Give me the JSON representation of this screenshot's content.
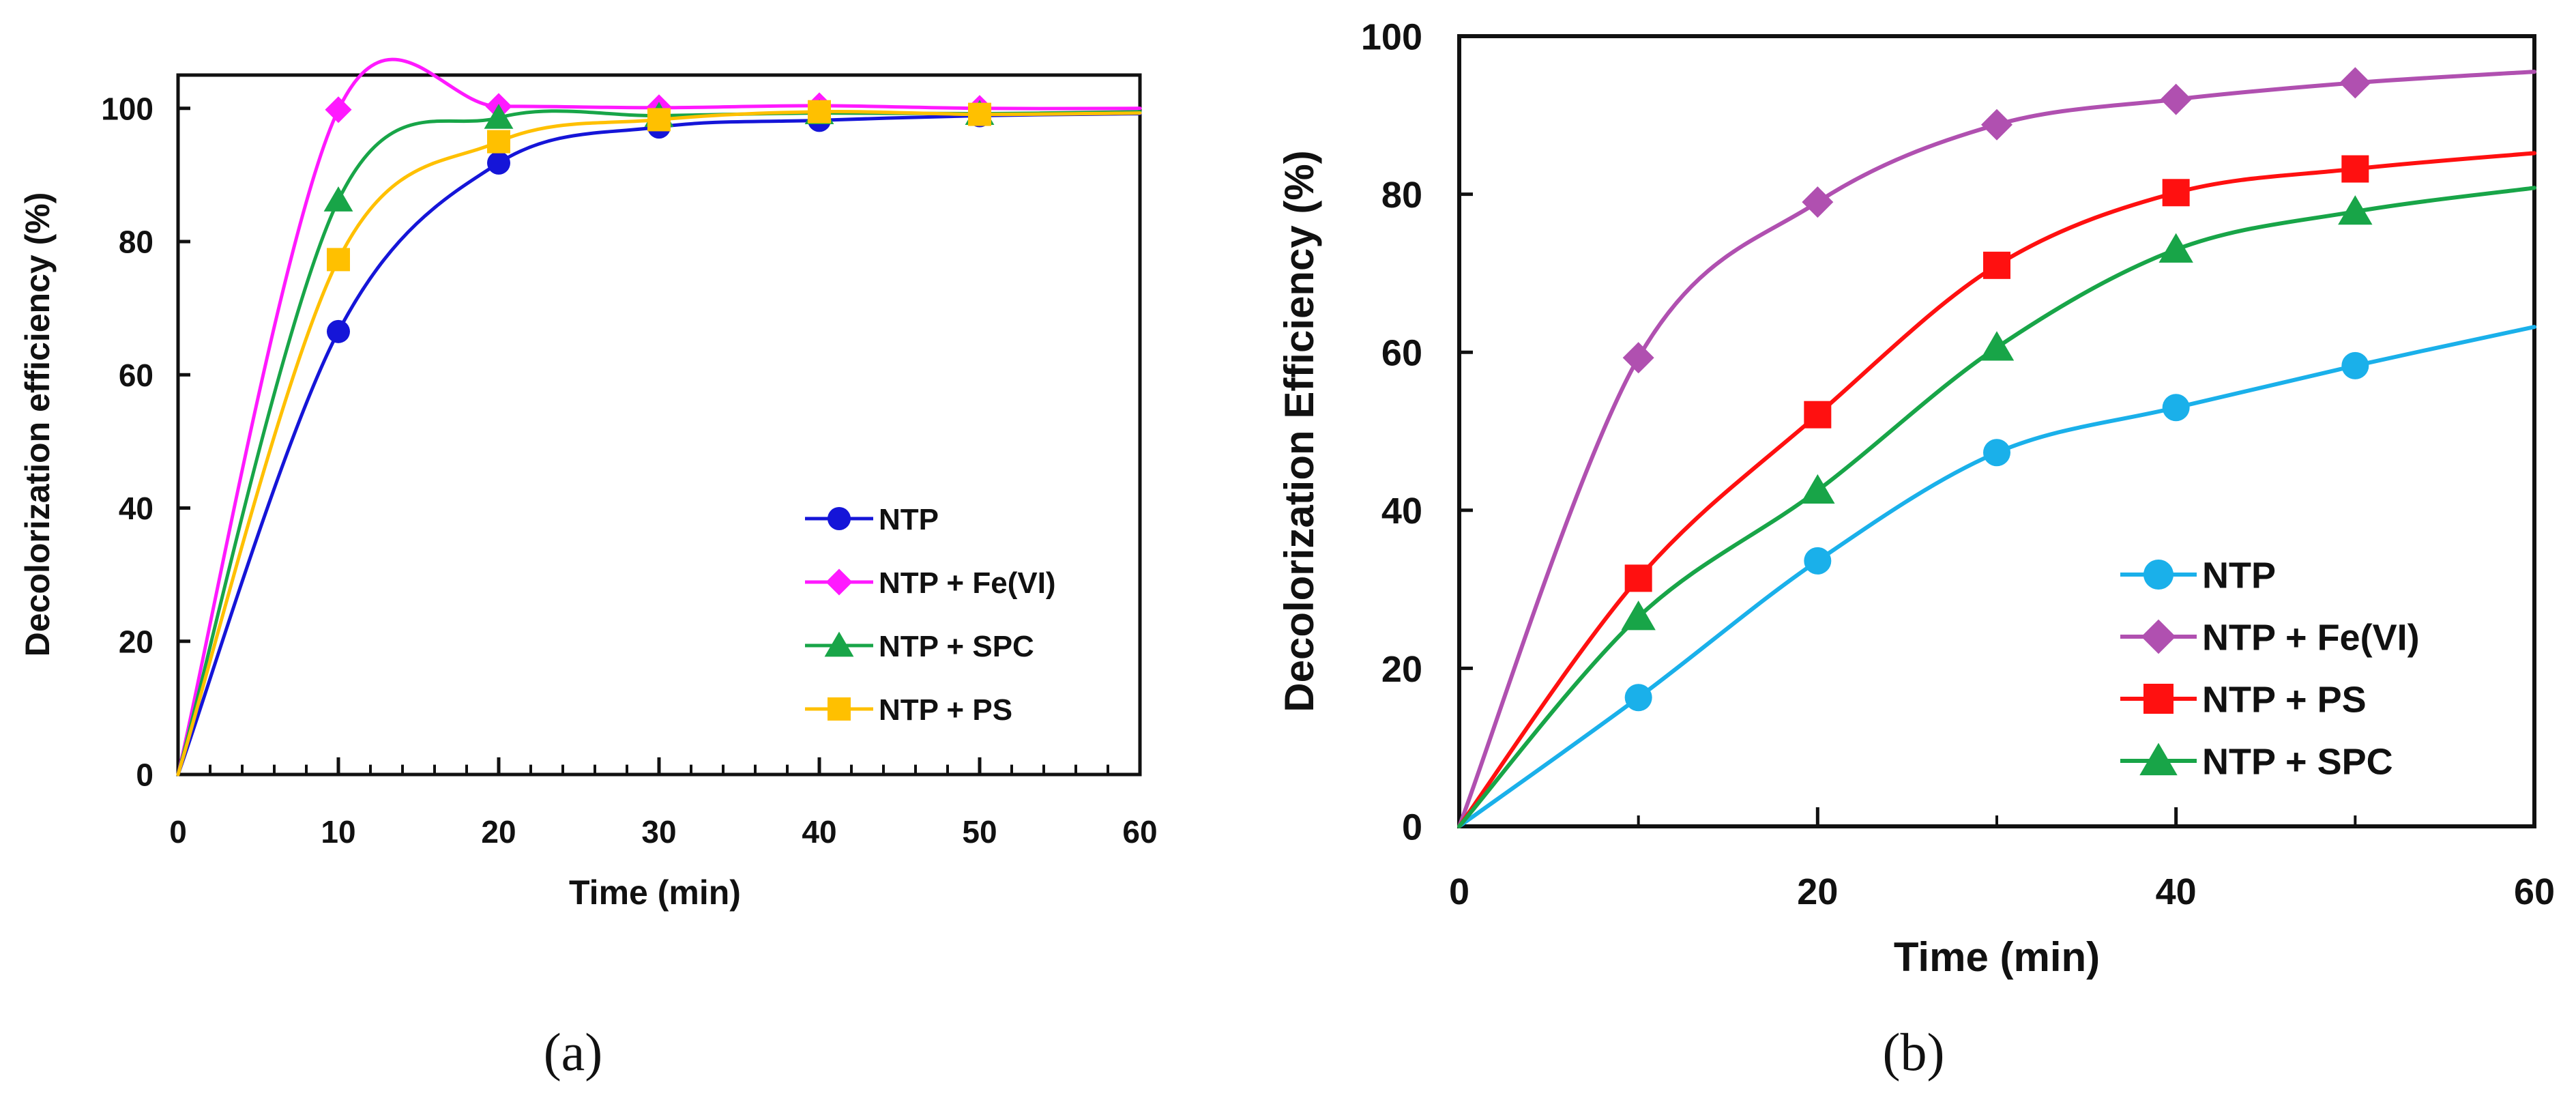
{
  "chart_data": [
    {
      "type": "line",
      "panel_label": "(a)",
      "xlabel": "Time (min)",
      "ylabel": "Decolorization efficiency (%)",
      "xlim": [
        0,
        60
      ],
      "ylim": [
        0,
        105
      ],
      "xticks": [
        0,
        10,
        20,
        30,
        40,
        50,
        60
      ],
      "yticks": [
        0,
        20,
        40,
        60,
        80,
        100
      ],
      "grid": false,
      "legend_position": "bottom-right",
      "series": [
        {
          "name": "NTP",
          "color": "#1515d8",
          "marker": "circle",
          "x": [
            0,
            10,
            20,
            30,
            40,
            50
          ],
          "y": [
            0,
            66.5,
            91.8,
            97.2,
            98.2,
            98.9
          ],
          "curve_end": [
            60,
            99.2
          ]
        },
        {
          "name": "NTP + Fe(VI)",
          "color": "#ff19ff",
          "marker": "diamond",
          "x": [
            0,
            10,
            20,
            30,
            40,
            50
          ],
          "y": [
            0,
            99.8,
            100.3,
            100.1,
            100.4,
            100.0
          ],
          "curve_end": [
            60,
            100.0
          ]
        },
        {
          "name": "NTP + SPC",
          "color": "#18a548",
          "marker": "triangle",
          "x": [
            0,
            10,
            20,
            30,
            40,
            50
          ],
          "y": [
            0,
            86.2,
            98.6,
            98.9,
            99.3,
            99.2
          ],
          "curve_end": [
            60,
            99.5
          ]
        },
        {
          "name": "NTP + PS",
          "color": "#ffc000",
          "marker": "square",
          "x": [
            0,
            10,
            20,
            30,
            40,
            50
          ],
          "y": [
            0,
            77.3,
            95.0,
            98.3,
            99.5,
            99.1
          ],
          "curve_end": [
            60,
            99.3
          ]
        }
      ]
    },
    {
      "type": "line",
      "panel_label": "(b)",
      "xlabel": "Time (min)",
      "ylabel": "Decolorization Efficiency (%)",
      "xlim": [
        0,
        60
      ],
      "ylim": [
        0,
        100
      ],
      "xticks": [
        0,
        20,
        40,
        60
      ],
      "yticks": [
        0,
        20,
        40,
        60,
        80,
        100
      ],
      "grid": false,
      "legend_position": "bottom-right",
      "series": [
        {
          "name": "NTP",
          "color": "#1ab0ea",
          "marker": "circle",
          "x": [
            0,
            10,
            20,
            30,
            40,
            50
          ],
          "y": [
            0,
            16.3,
            33.6,
            47.3,
            53.0,
            58.3
          ],
          "curve_end": [
            60,
            63.2
          ]
        },
        {
          "name": "NTP + Fe(VI)",
          "color": "#b050b0",
          "marker": "diamond",
          "x": [
            0,
            10,
            20,
            30,
            40,
            50
          ],
          "y": [
            0,
            59.3,
            79.0,
            88.8,
            92.0,
            94.1
          ],
          "curve_end": [
            60,
            95.5
          ]
        },
        {
          "name": "NTP + PS",
          "color": "#ff1010",
          "marker": "square",
          "x": [
            0,
            10,
            20,
            30,
            40,
            50
          ],
          "y": [
            0,
            31.4,
            52.1,
            71.0,
            80.2,
            83.2
          ],
          "curve_end": [
            60,
            85.2
          ]
        },
        {
          "name": "NTP + SPC",
          "color": "#18a548",
          "marker": "triangle",
          "x": [
            0,
            10,
            20,
            30,
            40,
            50
          ],
          "y": [
            0,
            26.5,
            42.5,
            60.6,
            73.0,
            77.8
          ],
          "curve_end": [
            60,
            80.8
          ]
        }
      ]
    }
  ]
}
